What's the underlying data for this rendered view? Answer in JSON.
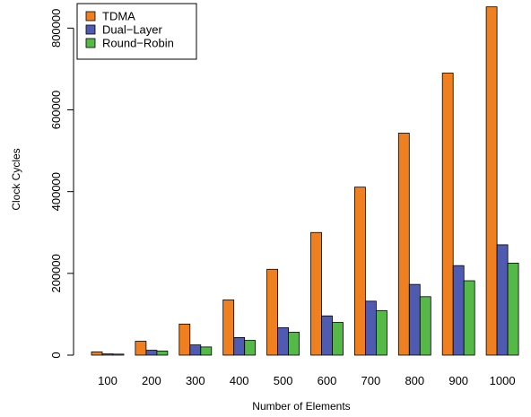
{
  "chart_data": {
    "type": "bar",
    "xlabel": "Number of Elements",
    "ylabel": "Clock Cycles",
    "categories": [
      "100",
      "200",
      "300",
      "400",
      "500",
      "600",
      "700",
      "800",
      "900",
      "1000"
    ],
    "series": [
      {
        "name": "TDMA",
        "color": "#f07f1f",
        "values": [
          8000,
          34000,
          76000,
          135000,
          210000,
          300000,
          411000,
          543000,
          690000,
          852000
        ]
      },
      {
        "name": "Dual−Layer",
        "color": "#4f5bb0",
        "values": [
          3000,
          12000,
          25000,
          43000,
          67000,
          96000,
          132000,
          173000,
          219000,
          270000
        ]
      },
      {
        "name": "Round−Robin",
        "color": "#55b948",
        "values": [
          2500,
          10000,
          20000,
          36000,
          56000,
          80000,
          109000,
          143000,
          182000,
          225000
        ]
      }
    ],
    "ylim": [
      0,
      860000
    ],
    "yticks": [
      0,
      200000,
      400000,
      600000,
      800000
    ],
    "ytick_labels": [
      "0",
      "200000",
      "400000",
      "600000",
      "800000"
    ],
    "grid": false,
    "legend": "top-left"
  }
}
